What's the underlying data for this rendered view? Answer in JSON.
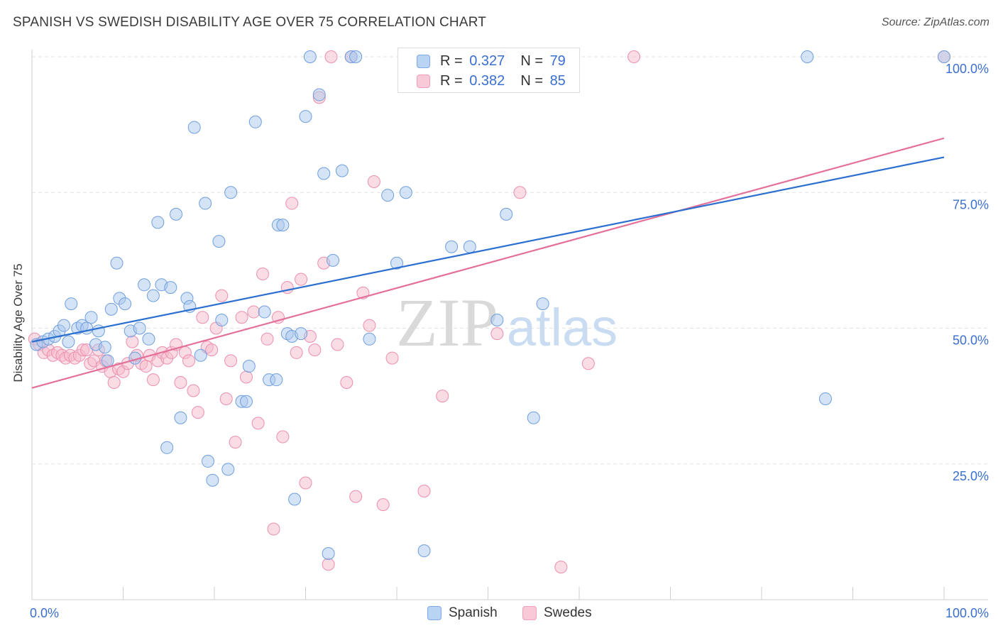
{
  "title": "SPANISH VS SWEDISH DISABILITY AGE OVER 75 CORRELATION CHART",
  "source": "Source: ZipAtlas.com",
  "watermark": {
    "zip": "ZIP",
    "atlas": "atlas"
  },
  "legend": {
    "rows": [
      {
        "r_label": "R =",
        "r_value": "0.327",
        "n_label": "N =",
        "n_value": "79"
      },
      {
        "r_label": "R =",
        "r_value": "0.382",
        "n_label": "N =",
        "n_value": "85"
      }
    ]
  },
  "colors": {
    "spanish_fill": "#a9c8ee",
    "spanish_stroke": "#6f9fde",
    "spanish_line": "#2b6fd0",
    "swedes_fill": "#f6b9cc",
    "swedes_stroke": "#eb8fae",
    "swedes_line": "#e4709a",
    "value_text": "#3a6fd0"
  },
  "chart_data": {
    "type": "scatter",
    "title": "SPANISH VS SWEDISH DISABILITY AGE OVER 75 CORRELATION CHART",
    "xlabel": "",
    "ylabel": "Disability Age Over 75",
    "xlim": [
      0,
      100
    ],
    "ylim": [
      0,
      100
    ],
    "x_tick_labels": [
      "0.0%",
      "100.0%"
    ],
    "y_tick_labels": [
      "100.0%",
      "75.0%",
      "50.0%",
      "25.0%"
    ],
    "y_ticks": [
      100,
      75,
      50,
      25
    ],
    "grid": true,
    "legend_position": "top-center",
    "series": [
      {
        "name": "Spanish",
        "r": 0.327,
        "n": 79,
        "trend": {
          "x": [
            0,
            100
          ],
          "y": [
            47.5,
            81.5
          ]
        },
        "points": [
          [
            0.5,
            47
          ],
          [
            1.2,
            47.5
          ],
          [
            1.8,
            48
          ],
          [
            2.5,
            48.5
          ],
          [
            3,
            49.5
          ],
          [
            3.5,
            50.5
          ],
          [
            4,
            47.5
          ],
          [
            4.3,
            54.5
          ],
          [
            5,
            50
          ],
          [
            5.5,
            50.5
          ],
          [
            6,
            50
          ],
          [
            6.5,
            52
          ],
          [
            7,
            47
          ],
          [
            7.3,
            49.5
          ],
          [
            8,
            46.5
          ],
          [
            8.3,
            44
          ],
          [
            8.7,
            53.5
          ],
          [
            9.3,
            62
          ],
          [
            9.6,
            55.5
          ],
          [
            10.2,
            54.5
          ],
          [
            10.8,
            49.5
          ],
          [
            11.3,
            44.5
          ],
          [
            11.8,
            50
          ],
          [
            12.3,
            58
          ],
          [
            12.8,
            48
          ],
          [
            13.3,
            56
          ],
          [
            13.8,
            69.5
          ],
          [
            14.2,
            58
          ],
          [
            14.8,
            28
          ],
          [
            15.2,
            57.5
          ],
          [
            15.8,
            71
          ],
          [
            16.3,
            33.5
          ],
          [
            17,
            55.5
          ],
          [
            17.3,
            54
          ],
          [
            17.8,
            87
          ],
          [
            18.5,
            45
          ],
          [
            19,
            73
          ],
          [
            19.3,
            25.5
          ],
          [
            19.8,
            22
          ],
          [
            20.5,
            66
          ],
          [
            20.8,
            51.5
          ],
          [
            21.5,
            24
          ],
          [
            21.8,
            75
          ],
          [
            23,
            36.5
          ],
          [
            23.5,
            36.5
          ],
          [
            23.8,
            43
          ],
          [
            24.5,
            88
          ],
          [
            25.5,
            53
          ],
          [
            26,
            40.5
          ],
          [
            26.8,
            40.5
          ],
          [
            27,
            69
          ],
          [
            27.5,
            69
          ],
          [
            28,
            49
          ],
          [
            28.5,
            48.5
          ],
          [
            28.8,
            18.5
          ],
          [
            29.5,
            49
          ],
          [
            30,
            89
          ],
          [
            30.5,
            100
          ],
          [
            31.5,
            93
          ],
          [
            32,
            78.5
          ],
          [
            32.5,
            8.5
          ],
          [
            33,
            62.5
          ],
          [
            34,
            79
          ],
          [
            35,
            100
          ],
          [
            35.5,
            100
          ],
          [
            37,
            48
          ],
          [
            39,
            74.5
          ],
          [
            40,
            62
          ],
          [
            41,
            75
          ],
          [
            43,
            9
          ],
          [
            46,
            65
          ],
          [
            48,
            65
          ],
          [
            51,
            51.5
          ],
          [
            52,
            71
          ],
          [
            55,
            33.5
          ],
          [
            56,
            54.5
          ],
          [
            85,
            100
          ],
          [
            87,
            37
          ],
          [
            100,
            100
          ]
        ]
      },
      {
        "name": "Swedes",
        "r": 0.382,
        "n": 85,
        "trend": {
          "x": [
            0,
            100
          ],
          "y": [
            39,
            85
          ]
        },
        "points": [
          [
            0.3,
            48
          ],
          [
            0.8,
            47
          ],
          [
            1.3,
            45.5
          ],
          [
            1.8,
            46
          ],
          [
            2.3,
            45
          ],
          [
            2.8,
            45.5
          ],
          [
            3.3,
            45
          ],
          [
            3.7,
            44.5
          ],
          [
            4.2,
            45
          ],
          [
            4.7,
            44.5
          ],
          [
            5.2,
            45
          ],
          [
            5.6,
            46
          ],
          [
            6,
            46
          ],
          [
            6.4,
            43.5
          ],
          [
            6.8,
            44
          ],
          [
            7.3,
            46
          ],
          [
            7.7,
            43
          ],
          [
            8.1,
            44
          ],
          [
            8.6,
            42
          ],
          [
            9,
            40
          ],
          [
            9.5,
            42.5
          ],
          [
            10,
            42
          ],
          [
            10.5,
            43.5
          ],
          [
            11,
            47.5
          ],
          [
            11.5,
            45
          ],
          [
            12,
            43.5
          ],
          [
            12.5,
            43
          ],
          [
            12.9,
            45
          ],
          [
            13.3,
            40.5
          ],
          [
            13.8,
            44
          ],
          [
            14.3,
            45.5
          ],
          [
            14.8,
            44.5
          ],
          [
            15.3,
            45.5
          ],
          [
            15.8,
            47
          ],
          [
            16.3,
            40
          ],
          [
            16.8,
            45.5
          ],
          [
            17.2,
            44
          ],
          [
            17.7,
            38.5
          ],
          [
            18.2,
            34.5
          ],
          [
            18.7,
            52
          ],
          [
            19.2,
            46.5
          ],
          [
            19.7,
            46
          ],
          [
            20.2,
            50
          ],
          [
            20.8,
            56
          ],
          [
            21.3,
            37
          ],
          [
            21.8,
            44
          ],
          [
            22.3,
            29
          ],
          [
            23,
            52
          ],
          [
            23.5,
            41
          ],
          [
            24.3,
            53
          ],
          [
            24.8,
            32.5
          ],
          [
            25.3,
            60
          ],
          [
            25.8,
            48
          ],
          [
            26.5,
            13
          ],
          [
            27,
            52
          ],
          [
            27.5,
            30
          ],
          [
            28,
            57.5
          ],
          [
            28.5,
            73
          ],
          [
            29,
            45.5
          ],
          [
            29.5,
            59
          ],
          [
            30,
            21.5
          ],
          [
            30.5,
            48.5
          ],
          [
            31,
            46
          ],
          [
            31.5,
            92.5
          ],
          [
            32,
            62
          ],
          [
            32.5,
            6.5
          ],
          [
            32.8,
            100
          ],
          [
            33.5,
            47
          ],
          [
            34.5,
            40
          ],
          [
            35,
            100
          ],
          [
            35.5,
            19
          ],
          [
            36.3,
            56.5
          ],
          [
            37,
            50.5
          ],
          [
            37.5,
            77
          ],
          [
            38.5,
            17.5
          ],
          [
            39.5,
            44.5
          ],
          [
            43,
            20
          ],
          [
            45,
            37.5
          ],
          [
            51,
            49
          ],
          [
            51.5,
            100
          ],
          [
            53.5,
            75
          ],
          [
            58,
            6
          ],
          [
            61,
            43.5
          ],
          [
            66,
            100
          ],
          [
            100,
            100
          ]
        ]
      }
    ]
  },
  "bottom_legend": [
    {
      "label": "Spanish"
    },
    {
      "label": "Swedes"
    }
  ]
}
